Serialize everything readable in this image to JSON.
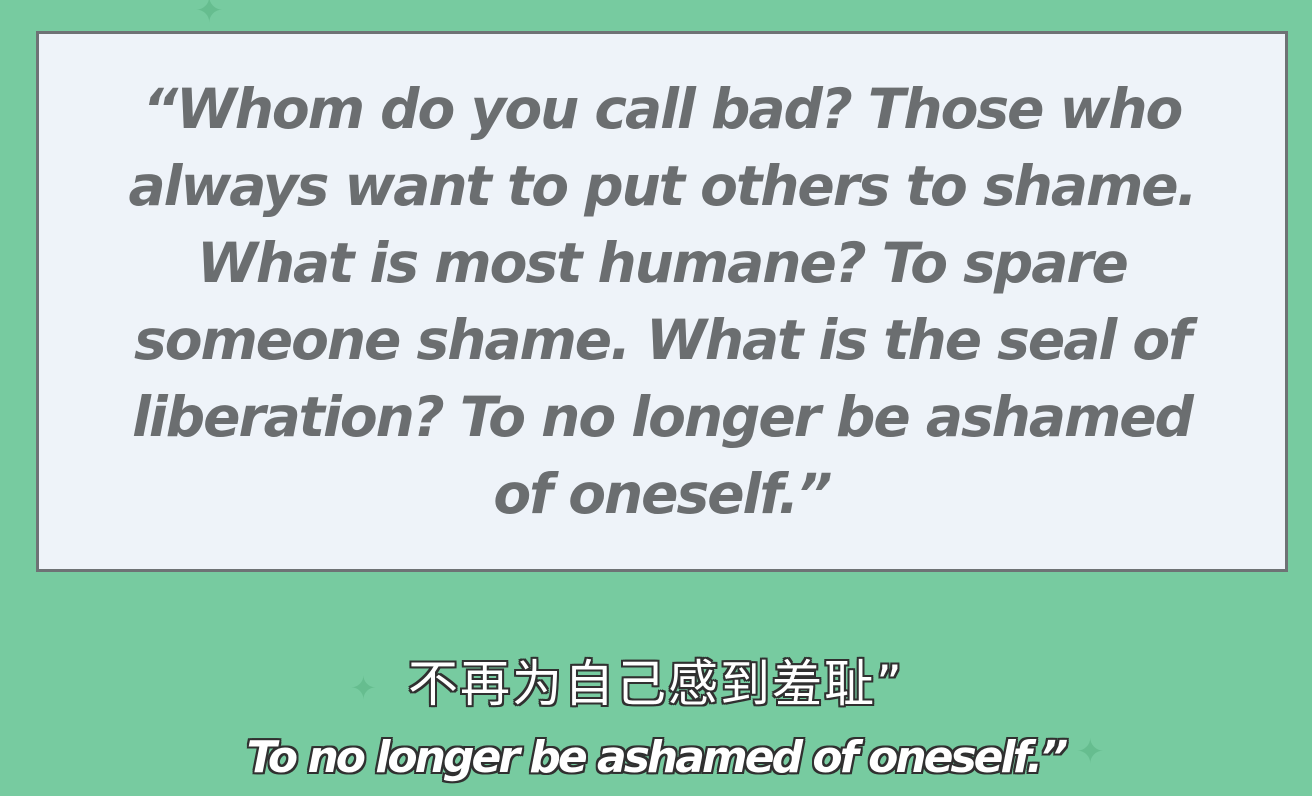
{
  "quote": {
    "text": "“Whom do you call bad? Those who always want to put others to shame. What is most humane? To spare someone shame. What is the seal of liberation? To no longer be ashamed of oneself.”"
  },
  "subtitles": {
    "chinese": "不再为自己感到羞耻”",
    "english": "To no longer be ashamed of oneself.”"
  },
  "decorations": {
    "sparkle_glyph": "✦",
    "sparkle_icon": "sparkle-icon",
    "sparkle_color": "#66bd8f"
  },
  "colors": {
    "background": "#77cba0",
    "box_fill": "#eef3f9",
    "box_border": "#6e7275",
    "quote_text": "#6b6e70",
    "subtitle_text": "#ffffff",
    "subtitle_outline": "#303030"
  }
}
